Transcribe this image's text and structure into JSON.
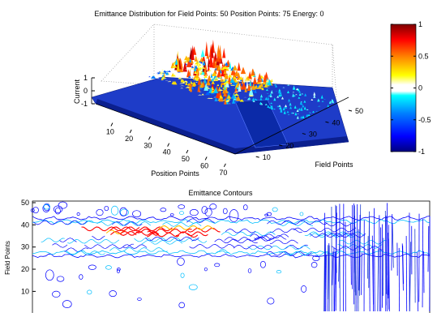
{
  "figure": {
    "background": "#ffffff"
  },
  "chart_data": [
    {
      "type": "surface",
      "title": "Emittance Distribution for Field Points: 50 Position Points: 75 Energy: 0",
      "xlabel": "Position Points",
      "ylabel": "Field Points",
      "zlabel": "Current",
      "x_ticks": [
        10,
        20,
        30,
        40,
        50,
        60,
        70
      ],
      "y_ticks": [
        10,
        20,
        30,
        40,
        50
      ],
      "z_ticks": [
        -1,
        0,
        1
      ],
      "xlim": [
        1,
        75
      ],
      "ylim": [
        1,
        50
      ],
      "zlim": [
        -1,
        1
      ],
      "colormap": "jet",
      "grid": true,
      "surface_features": [
        {
          "position_range": [
            1,
            45
          ],
          "field_range": [
            24,
            44
          ],
          "description_value": "peaks",
          "max_current": 0.9
        },
        {
          "position_range": [
            45,
            75
          ],
          "field_range": [
            0,
            50
          ],
          "max_current": 0.3
        }
      ],
      "colorbar": {
        "limits": [
          -1,
          1
        ],
        "ticks": [
          -1,
          -0.5,
          0,
          0.5,
          1
        ],
        "tick_labels": [
          "-1",
          "-0.5",
          "0",
          "0.5",
          "1"
        ],
        "colors": [
          "#00007f",
          "#0000ff",
          "#007fff",
          "#00ffff",
          "#ffffff",
          "#ffff00",
          "#ff7f00",
          "#ff0000",
          "#7f0000"
        ]
      }
    },
    {
      "type": "contour",
      "title": "Emittance Contours",
      "ylabel": "Field Points",
      "xlabel": "",
      "y_ticks": [
        10,
        20,
        30,
        40,
        50
      ],
      "xlim": [
        1,
        75
      ],
      "ylim": [
        1,
        50
      ],
      "band": {
        "field_low": 26,
        "field_high": 43,
        "beam_center": 37,
        "position_start": 1,
        "position_end": 60
      },
      "vertical_stripes_position_range": [
        40,
        75
      ],
      "colors": {
        "low": "#0000ff",
        "mid": "#00bfff",
        "high": "#ff0000",
        "warm": "#ffbf00"
      }
    }
  ]
}
